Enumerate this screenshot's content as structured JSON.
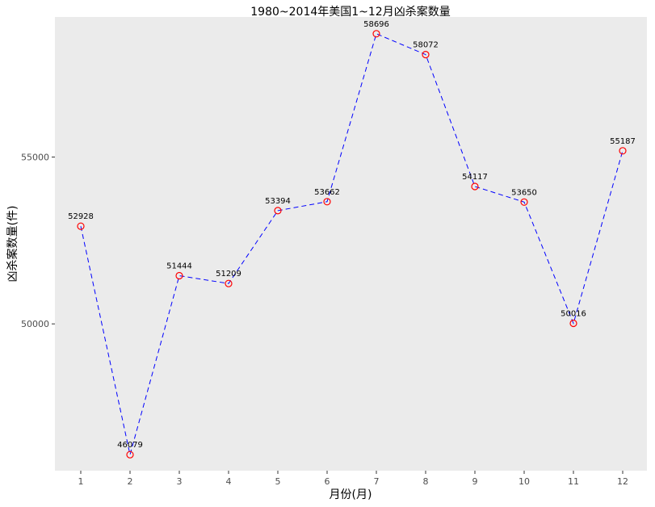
{
  "chart_data": {
    "type": "line",
    "title": "1980~2014年美国1~12月凶杀案数量",
    "xlabel": "月份(月)",
    "ylabel": "凶杀案数量(件)",
    "categories": [
      "1",
      "2",
      "3",
      "4",
      "5",
      "6",
      "7",
      "8",
      "9",
      "10",
      "11",
      "12"
    ],
    "values": [
      52928,
      46079,
      51444,
      51209,
      53394,
      53662,
      58696,
      58072,
      54117,
      53650,
      50016,
      55187
    ],
    "yticks": [
      50000,
      55000
    ],
    "ytick_labels": [
      "50000",
      "55000"
    ],
    "ylim": [
      45600,
      59200
    ],
    "grid": false,
    "line_style": "dashed",
    "colors": {
      "line": "#0000ff",
      "marker": "#ff0000",
      "panel": "#ebebeb"
    }
  }
}
